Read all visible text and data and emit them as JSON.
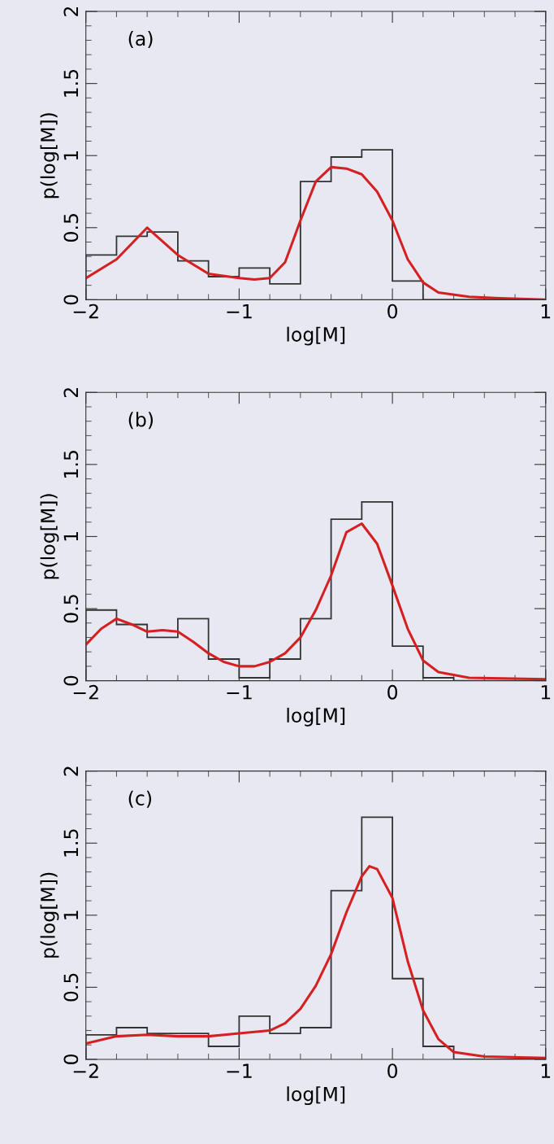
{
  "chart_data": [
    {
      "type": "histogram",
      "xlabel": "log[M]",
      "ylabel": "p(log[M])",
      "annotations": [
        "(a)"
      ],
      "xlim": [
        -2,
        1
      ],
      "ylim": [
        0,
        2
      ],
      "xticks": [
        {
          "value": -2,
          "label": "−2"
        },
        {
          "value": -1.8,
          "label": null
        },
        {
          "value": -1.6,
          "label": null
        },
        {
          "value": -1.4,
          "label": null
        },
        {
          "value": -1.2,
          "label": null
        },
        {
          "value": -1,
          "label": "−1"
        },
        {
          "value": -0.8,
          "label": null
        },
        {
          "value": -0.6,
          "label": null
        },
        {
          "value": -0.4,
          "label": null
        },
        {
          "value": -0.2,
          "label": null
        },
        0,
        {
          "value": 0.2,
          "label": null
        },
        {
          "value": 0.4,
          "label": null
        },
        {
          "value": 0.6,
          "label": null
        },
        {
          "value": 0.8,
          "label": null
        },
        1
      ],
      "yticks": [
        0,
        {
          "value": 0.1,
          "label": null
        },
        {
          "value": 0.2,
          "label": null
        },
        {
          "value": 0.3,
          "label": null
        },
        {
          "value": 0.4,
          "label": null
        },
        0.5,
        {
          "value": 0.6,
          "label": null
        },
        {
          "value": 0.7,
          "label": null
        },
        {
          "value": 0.8,
          "label": null
        },
        {
          "value": 0.9,
          "label": null
        },
        1,
        {
          "value": 1.1,
          "label": null
        },
        {
          "value": 1.2,
          "label": null
        },
        {
          "value": 1.3,
          "label": null
        },
        {
          "value": 1.4,
          "label": null
        },
        1.5,
        {
          "value": 1.6,
          "label": null
        },
        {
          "value": 1.7,
          "label": null
        },
        {
          "value": 1.8,
          "label": null
        },
        {
          "value": 1.9,
          "label": null
        },
        2
      ],
      "series": [
        {
          "color": "#333333",
          "bins": [
            -2,
            -1.8,
            -1.6,
            -1.4,
            -1.2,
            -1,
            -0.8,
            -0.6,
            -0.4,
            -0.2,
            0,
            0.2,
            0.4,
            0.6,
            0.8,
            1
          ],
          "values": [
            0.31,
            0.44,
            0.47,
            0.27,
            0.16,
            0.22,
            0.11,
            0.82,
            0.99,
            1.04,
            0.13,
            0,
            0,
            0,
            0
          ]
        },
        {
          "type": "line",
          "color": "#d42020",
          "x": [
            -2,
            -1.8,
            -1.6,
            -1.4,
            -1.2,
            -1,
            -0.9,
            -0.8,
            -0.7,
            -0.6,
            -0.5,
            -0.4,
            -0.3,
            -0.2,
            -0.1,
            0,
            0.1,
            0.2,
            0.3,
            0.5,
            0.7,
            1
          ],
          "values": [
            0.15,
            0.28,
            0.5,
            0.31,
            0.18,
            0.15,
            0.14,
            0.15,
            0.26,
            0.55,
            0.82,
            0.92,
            0.91,
            0.87,
            0.75,
            0.55,
            0.28,
            0.12,
            0.05,
            0.02,
            0.01,
            0
          ]
        }
      ]
    },
    {
      "type": "histogram",
      "xlabel": "log[M]",
      "ylabel": "p(log[M])",
      "annotations": [
        "(b)"
      ],
      "xlim": [
        -2,
        1
      ],
      "ylim": [
        0,
        2
      ],
      "xticks": [
        {
          "value": -2,
          "label": "−2"
        },
        {
          "value": -1.8,
          "label": null
        },
        {
          "value": -1.6,
          "label": null
        },
        {
          "value": -1.4,
          "label": null
        },
        {
          "value": -1.2,
          "label": null
        },
        {
          "value": -1,
          "label": "−1"
        },
        {
          "value": -0.8,
          "label": null
        },
        {
          "value": -0.6,
          "label": null
        },
        {
          "value": -0.4,
          "label": null
        },
        {
          "value": -0.2,
          "label": null
        },
        0,
        {
          "value": 0.2,
          "label": null
        },
        {
          "value": 0.4,
          "label": null
        },
        {
          "value": 0.6,
          "label": null
        },
        {
          "value": 0.8,
          "label": null
        },
        1
      ],
      "yticks": [
        0,
        {
          "value": 0.1,
          "label": null
        },
        {
          "value": 0.2,
          "label": null
        },
        {
          "value": 0.3,
          "label": null
        },
        {
          "value": 0.4,
          "label": null
        },
        0.5,
        {
          "value": 0.6,
          "label": null
        },
        {
          "value": 0.7,
          "label": null
        },
        {
          "value": 0.8,
          "label": null
        },
        {
          "value": 0.9,
          "label": null
        },
        1,
        {
          "value": 1.1,
          "label": null
        },
        {
          "value": 1.2,
          "label": null
        },
        {
          "value": 1.3,
          "label": null
        },
        {
          "value": 1.4,
          "label": null
        },
        1.5,
        {
          "value": 1.6,
          "label": null
        },
        {
          "value": 1.7,
          "label": null
        },
        {
          "value": 1.8,
          "label": null
        },
        {
          "value": 1.9,
          "label": null
        },
        2
      ],
      "series": [
        {
          "color": "#333333",
          "bins": [
            -2,
            -1.8,
            -1.6,
            -1.4,
            -1.2,
            -1,
            -0.8,
            -0.6,
            -0.4,
            -0.2,
            0,
            0.2,
            0.4,
            0.6,
            0.8,
            1
          ],
          "values": [
            0.49,
            0.39,
            0.3,
            0.43,
            0.15,
            0.02,
            0.15,
            0.43,
            1.12,
            1.24,
            0.24,
            0.02,
            0,
            0,
            0
          ]
        },
        {
          "type": "line",
          "color": "#d42020",
          "x": [
            -2,
            -1.9,
            -1.8,
            -1.7,
            -1.6,
            -1.5,
            -1.4,
            -1.3,
            -1.2,
            -1.1,
            -1,
            -0.9,
            -0.8,
            -0.7,
            -0.6,
            -0.5,
            -0.4,
            -0.3,
            -0.2,
            -0.1,
            0,
            0.1,
            0.2,
            0.3,
            0.5,
            1
          ],
          "values": [
            0.25,
            0.36,
            0.43,
            0.39,
            0.34,
            0.35,
            0.34,
            0.27,
            0.19,
            0.13,
            0.1,
            0.1,
            0.13,
            0.19,
            0.3,
            0.49,
            0.73,
            1.03,
            1.09,
            0.95,
            0.66,
            0.36,
            0.14,
            0.06,
            0.02,
            0.01
          ]
        }
      ]
    },
    {
      "type": "histogram",
      "xlabel": "log[M]",
      "ylabel": "p(log[M])",
      "annotations": [
        "(c)"
      ],
      "xlim": [
        -2,
        1
      ],
      "ylim": [
        0,
        2
      ],
      "xticks": [
        {
          "value": -2,
          "label": "−2"
        },
        {
          "value": -1.8,
          "label": null
        },
        {
          "value": -1.6,
          "label": null
        },
        {
          "value": -1.4,
          "label": null
        },
        {
          "value": -1.2,
          "label": null
        },
        {
          "value": -1,
          "label": "−1"
        },
        {
          "value": -0.8,
          "label": null
        },
        {
          "value": -0.6,
          "label": null
        },
        {
          "value": -0.4,
          "label": null
        },
        {
          "value": -0.2,
          "label": null
        },
        0,
        {
          "value": 0.2,
          "label": null
        },
        {
          "value": 0.4,
          "label": null
        },
        {
          "value": 0.6,
          "label": null
        },
        {
          "value": 0.8,
          "label": null
        },
        1
      ],
      "yticks": [
        0,
        {
          "value": 0.1,
          "label": null
        },
        {
          "value": 0.2,
          "label": null
        },
        {
          "value": 0.3,
          "label": null
        },
        {
          "value": 0.4,
          "label": null
        },
        0.5,
        {
          "value": 0.6,
          "label": null
        },
        {
          "value": 0.7,
          "label": null
        },
        {
          "value": 0.8,
          "label": null
        },
        {
          "value": 0.9,
          "label": null
        },
        1,
        {
          "value": 1.1,
          "label": null
        },
        {
          "value": 1.2,
          "label": null
        },
        {
          "value": 1.3,
          "label": null
        },
        {
          "value": 1.4,
          "label": null
        },
        1.5,
        {
          "value": 1.6,
          "label": null
        },
        {
          "value": 1.7,
          "label": null
        },
        {
          "value": 1.8,
          "label": null
        },
        {
          "value": 1.9,
          "label": null
        },
        2
      ],
      "series": [
        {
          "color": "#333333",
          "bins": [
            -2,
            -1.8,
            -1.6,
            -1.4,
            -1.2,
            -1,
            -0.8,
            -0.6,
            -0.4,
            -0.2,
            0,
            0.2,
            0.4,
            0.6,
            0.8,
            1
          ],
          "values": [
            0.17,
            0.22,
            0.18,
            0.18,
            0.09,
            0.3,
            0.18,
            0.22,
            1.17,
            1.68,
            0.56,
            0.09,
            0,
            0,
            0
          ]
        },
        {
          "type": "line",
          "color": "#d42020",
          "x": [
            -2,
            -1.8,
            -1.6,
            -1.4,
            -1.2,
            -1,
            -0.8,
            -0.7,
            -0.6,
            -0.5,
            -0.4,
            -0.3,
            -0.2,
            -0.15,
            -0.1,
            0,
            0.1,
            0.2,
            0.3,
            0.4,
            0.6,
            1
          ],
          "values": [
            0.11,
            0.16,
            0.17,
            0.16,
            0.16,
            0.18,
            0.2,
            0.25,
            0.35,
            0.51,
            0.73,
            1.02,
            1.27,
            1.34,
            1.32,
            1.12,
            0.68,
            0.34,
            0.14,
            0.05,
            0.02,
            0.01
          ]
        }
      ]
    }
  ]
}
